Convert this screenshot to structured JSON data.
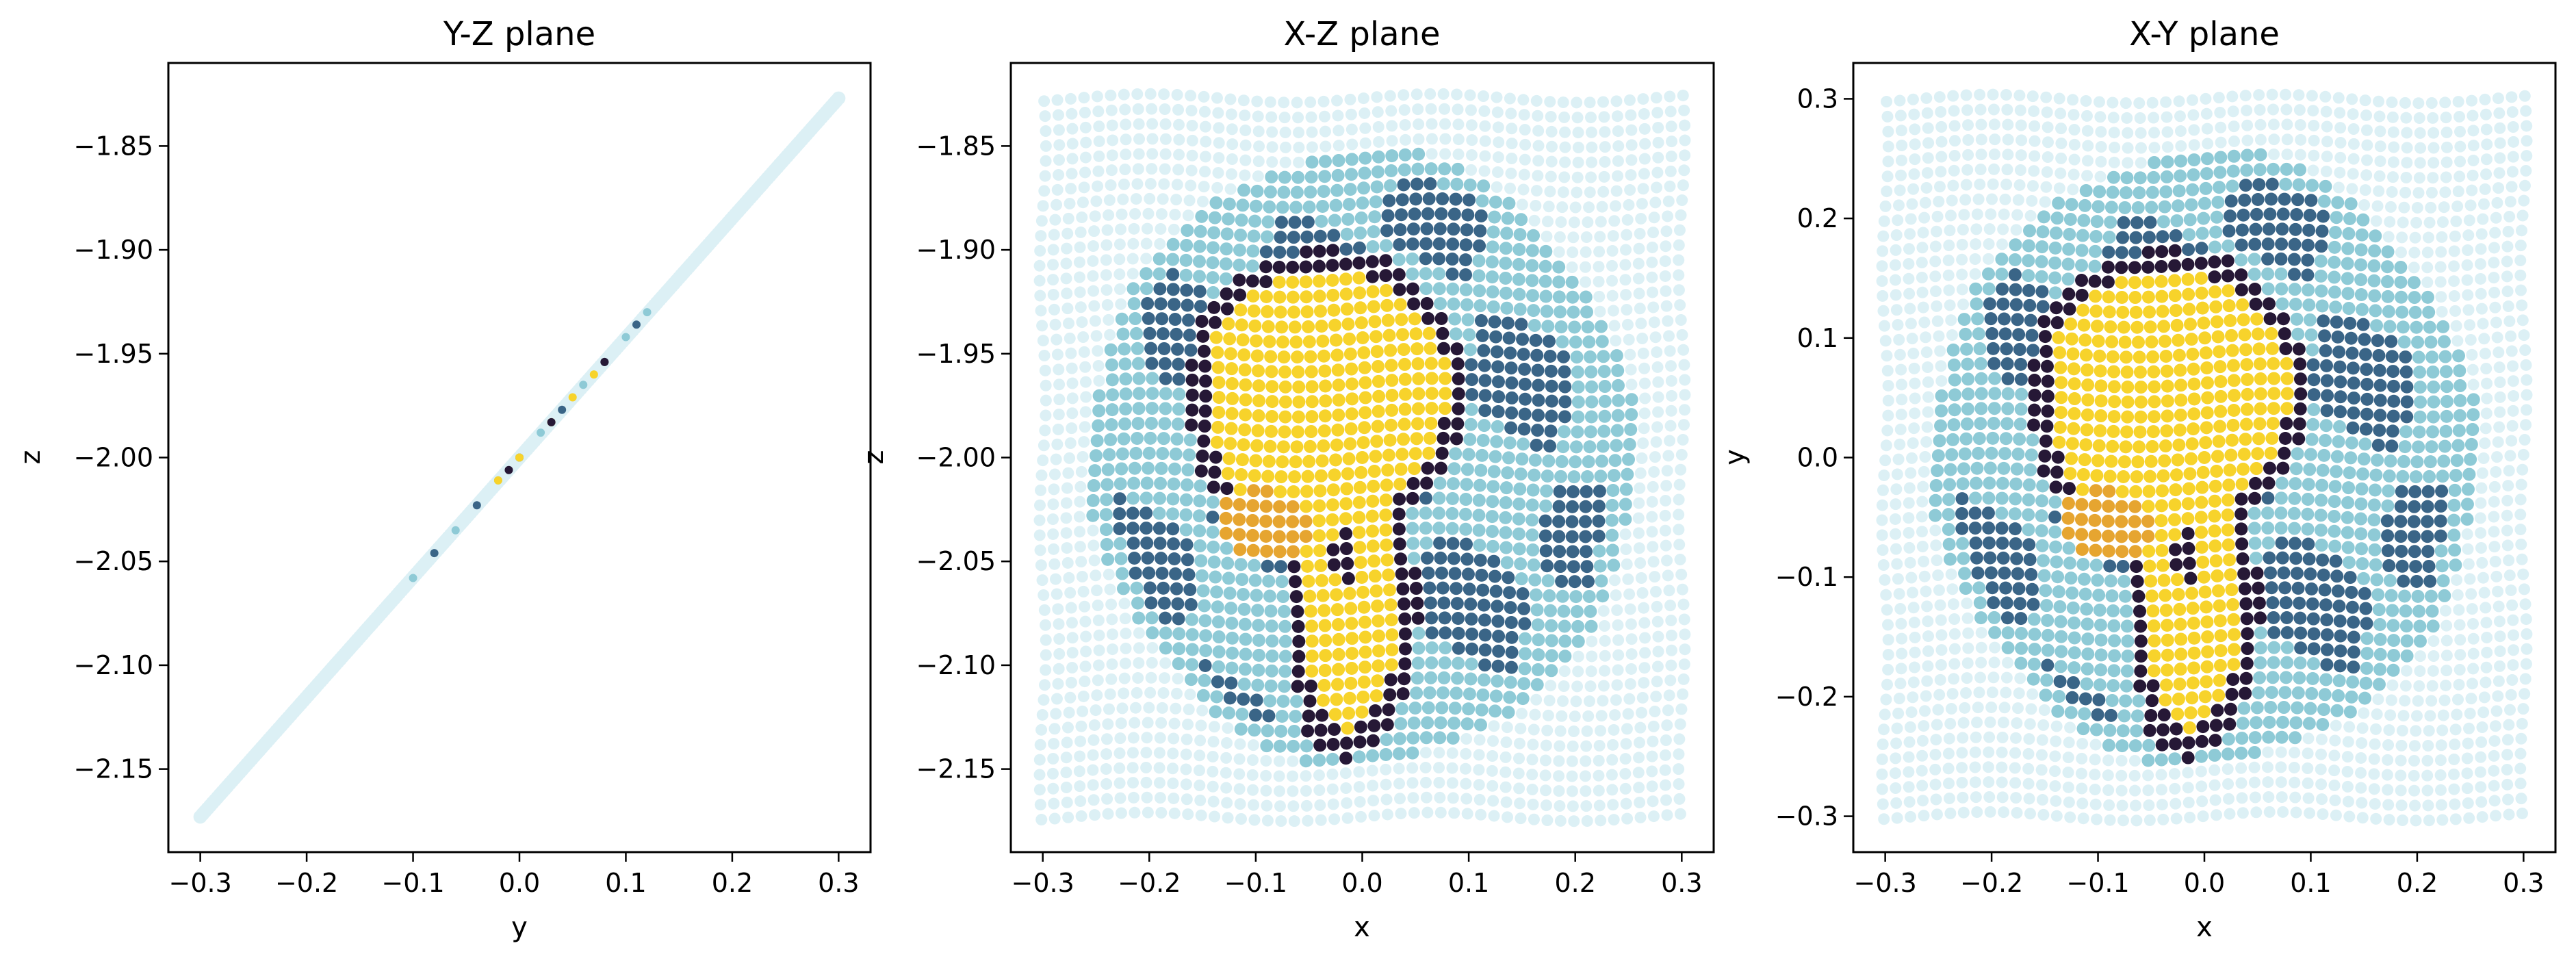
{
  "chart_data": [
    {
      "type": "scatter",
      "title": "Y-Z plane",
      "xlabel": "y",
      "ylabel": "z",
      "xlim": [
        -0.33,
        0.33
      ],
      "ylim": [
        -2.19,
        -1.81
      ],
      "xticks": [
        "−0.3",
        "−0.2",
        "−0.1",
        "0.0",
        "0.1",
        "0.2",
        "0.3"
      ],
      "xtick_values": [
        -0.3,
        -0.2,
        -0.1,
        0.0,
        0.1,
        0.2,
        0.3
      ],
      "yticks": [
        "−2.15",
        "−2.10",
        "−2.05",
        "−2.00",
        "−1.95",
        "−1.90",
        "−1.85"
      ],
      "ytick_values": [
        -2.15,
        -2.1,
        -2.05,
        -2.0,
        -1.95,
        -1.9,
        -1.85
      ],
      "grid": false,
      "series": [
        {
          "role": "background",
          "color": "#dcf0f5",
          "points": [
            [
              -0.3,
              -2.173
            ],
            [
              -0.25,
              -2.144
            ],
            [
              -0.2,
              -2.115
            ],
            [
              -0.15,
              -2.087
            ],
            [
              -0.1,
              -2.058
            ],
            [
              -0.05,
              -2.029
            ],
            [
              0.0,
              -2.0
            ],
            [
              0.05,
              -1.971
            ],
            [
              0.1,
              -1.942
            ],
            [
              0.15,
              -1.913
            ],
            [
              0.2,
              -1.885
            ],
            [
              0.25,
              -1.856
            ],
            [
              0.3,
              -1.827
            ]
          ]
        },
        {
          "role": "mid-blue",
          "color": "#8ecad6",
          "points": [
            [
              -0.1,
              -2.058
            ],
            [
              -0.06,
              -2.035
            ],
            [
              -0.02,
              -2.011
            ],
            [
              0.02,
              -1.988
            ],
            [
              0.06,
              -1.965
            ],
            [
              0.1,
              -1.942
            ],
            [
              0.12,
              -1.93
            ]
          ]
        },
        {
          "role": "dark-blue",
          "color": "#3a6587",
          "points": [
            [
              -0.08,
              -2.046
            ],
            [
              -0.04,
              -2.023
            ],
            [
              0.0,
              -2.0
            ],
            [
              0.04,
              -1.977
            ],
            [
              0.08,
              -1.954
            ],
            [
              0.11,
              -1.936
            ]
          ]
        },
        {
          "role": "yellow",
          "color": "#f7d32b",
          "points": [
            [
              -0.02,
              -2.011
            ],
            [
              0.0,
              -2.0
            ],
            [
              0.03,
              -1.983
            ],
            [
              0.05,
              -1.971
            ],
            [
              0.07,
              -1.96
            ]
          ]
        },
        {
          "role": "navy",
          "color": "#261836",
          "points": [
            [
              -0.01,
              -2.006
            ],
            [
              0.03,
              -1.983
            ],
            [
              0.08,
              -1.954
            ]
          ]
        }
      ]
    },
    {
      "type": "scatter",
      "title": "X-Z plane",
      "xlabel": "x",
      "ylabel": "z",
      "xlim": [
        -0.33,
        0.33
      ],
      "ylim": [
        -2.19,
        -1.81
      ],
      "xticks": [
        "−0.3",
        "−0.2",
        "−0.1",
        "0.0",
        "0.1",
        "0.2",
        "0.3"
      ],
      "xtick_values": [
        -0.3,
        -0.2,
        -0.1,
        0.0,
        0.1,
        0.2,
        0.3
      ],
      "yticks": [
        "−2.15",
        "−2.10",
        "−2.05",
        "−2.00",
        "−1.95",
        "−1.90",
        "−1.85"
      ],
      "ytick_values": [
        -2.15,
        -2.1,
        -2.05,
        -2.0,
        -1.95,
        -1.9,
        -1.85
      ],
      "grid": false,
      "image_extent": {
        "x": [
          -0.3,
          0.3
        ],
        "y": [
          -2.173,
          -1.827
        ]
      },
      "image_center": {
        "x": 0.0,
        "y": -2.0
      }
    },
    {
      "type": "scatter",
      "title": "X-Y plane",
      "xlabel": "x",
      "ylabel": "y",
      "xlim": [
        -0.33,
        0.33
      ],
      "ylim": [
        -0.33,
        0.33
      ],
      "xticks": [
        "−0.3",
        "−0.2",
        "−0.1",
        "0.0",
        "0.1",
        "0.2",
        "0.3"
      ],
      "xtick_values": [
        -0.3,
        -0.2,
        -0.1,
        0.0,
        0.1,
        0.2,
        0.3
      ],
      "yticks": [
        "−0.3",
        "−0.2",
        "−0.1",
        "0.0",
        "0.1",
        "0.2",
        "0.3"
      ],
      "ytick_values": [
        -0.3,
        -0.2,
        -0.1,
        0.0,
        0.1,
        0.2,
        0.3
      ],
      "grid": false,
      "image_extent": {
        "x": [
          -0.3,
          0.3
        ],
        "y": [
          -0.3,
          0.3
        ]
      },
      "image_center": {
        "x": 0.0,
        "y": 0.0
      }
    }
  ],
  "palette": {
    "background_points": "#dcf0f5",
    "light_blue": "#8ecad6",
    "dark_blue": "#3a6587",
    "yellow": "#f7d32b",
    "orange": "#e6a530",
    "navy": "#261836"
  }
}
